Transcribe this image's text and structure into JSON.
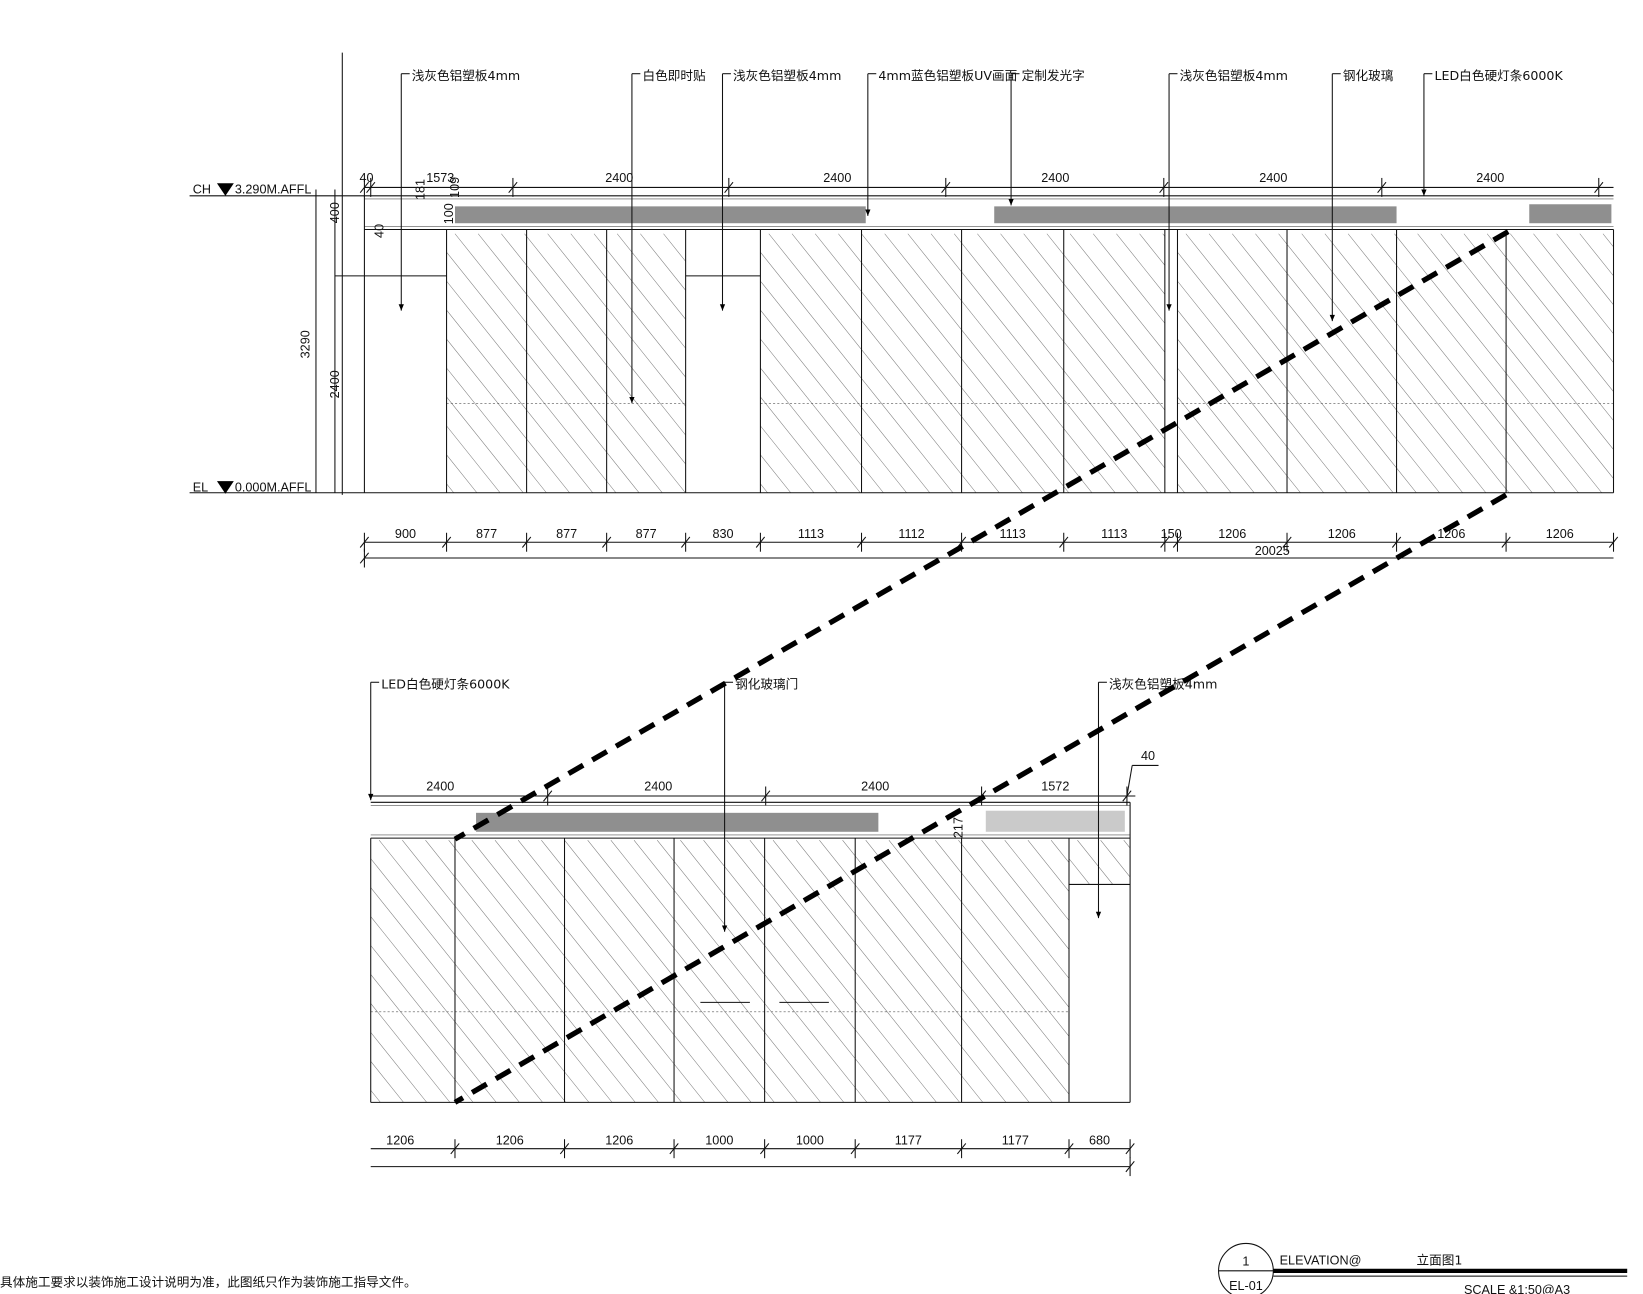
{
  "levels": {
    "ch_label": "CH",
    "ch_value": "3.290M.AFFL",
    "el_label": "EL",
    "el_value": "0.000M.AFFL"
  },
  "upper": {
    "callouts": [
      "浅灰色铝塑板4mm",
      "白色即时贴",
      "浅灰色铝塑板4mm",
      "4mm蓝色铝塑板UV画面",
      "定制发光字",
      "浅灰色铝塑板4mm",
      "钢化玻璃",
      "LED白色硬灯条6000K"
    ],
    "top_dims": [
      "40",
      "1573",
      "2400",
      "2400",
      "2400",
      "2400",
      "2400"
    ],
    "small_dims": [
      "181",
      "109",
      "100",
      "40"
    ],
    "left_dims": {
      "total": "3290",
      "band": "400",
      "door": "2400"
    },
    "bottom_dims": [
      "900",
      "877",
      "877",
      "877",
      "830",
      "1113",
      "1112",
      "1113",
      "1113",
      "150",
      "1206",
      "1206",
      "1206",
      "1206"
    ],
    "overall": "20025"
  },
  "lower": {
    "callouts": [
      "LED白色硬灯条6000K",
      "钢化玻璃门",
      "浅灰色铝塑板4mm"
    ],
    "top_dims": [
      "2400",
      "2400",
      "2400",
      "1572",
      "40"
    ],
    "small_dim": "217",
    "bottom_dims": [
      "1206",
      "1206",
      "1206",
      "1000",
      "1000",
      "1177",
      "1177",
      "680"
    ]
  },
  "footer": {
    "note": "具体施工要求以装饰施工设计说明为准，此图纸只作为装饰施工指导文件。",
    "drawing_number": "1",
    "sheet": "EL-01",
    "title_en": "ELEVATION@",
    "title_cn": "立面图1",
    "scale": "SCALE  &1:50@A3"
  }
}
